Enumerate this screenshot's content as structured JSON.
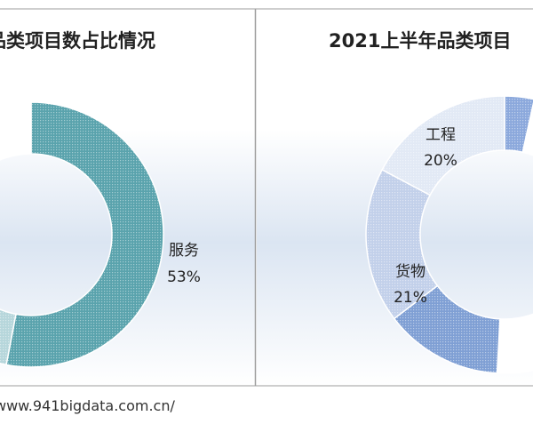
{
  "chart_data": [
    {
      "type": "pie",
      "donut": true,
      "title": "品类项目数占比情况",
      "slices": [
        {
          "label": "服务",
          "value": 53,
          "value_text": "53%",
          "color": "#5aa3ad"
        },
        {
          "label": "",
          "value": 4,
          "value_text": "",
          "color": "#b6d6db"
        },
        {
          "label": "",
          "value": 43,
          "value_text": "",
          "color": "#ffffff"
        }
      ]
    },
    {
      "type": "pie",
      "donut": true,
      "title": "2021上半年品类项目",
      "slices": [
        {
          "label": "",
          "value": 4,
          "value_text": "",
          "color": "#8ba8dc"
        },
        {
          "label": "",
          "value": 55,
          "value_text": "",
          "color": "#ffffff"
        },
        {
          "label": "",
          "value": 16,
          "value_text": "",
          "color": "#7f9fd4"
        },
        {
          "label": "货物",
          "value": 21,
          "value_text": "21%",
          "color": "#c2d0ea"
        },
        {
          "label": "工程",
          "value": 20,
          "value_text": "20%",
          "color": "#e2e9f5"
        }
      ]
    }
  ],
  "footer": {
    "source": "www.941bigdata.com.cn/"
  }
}
